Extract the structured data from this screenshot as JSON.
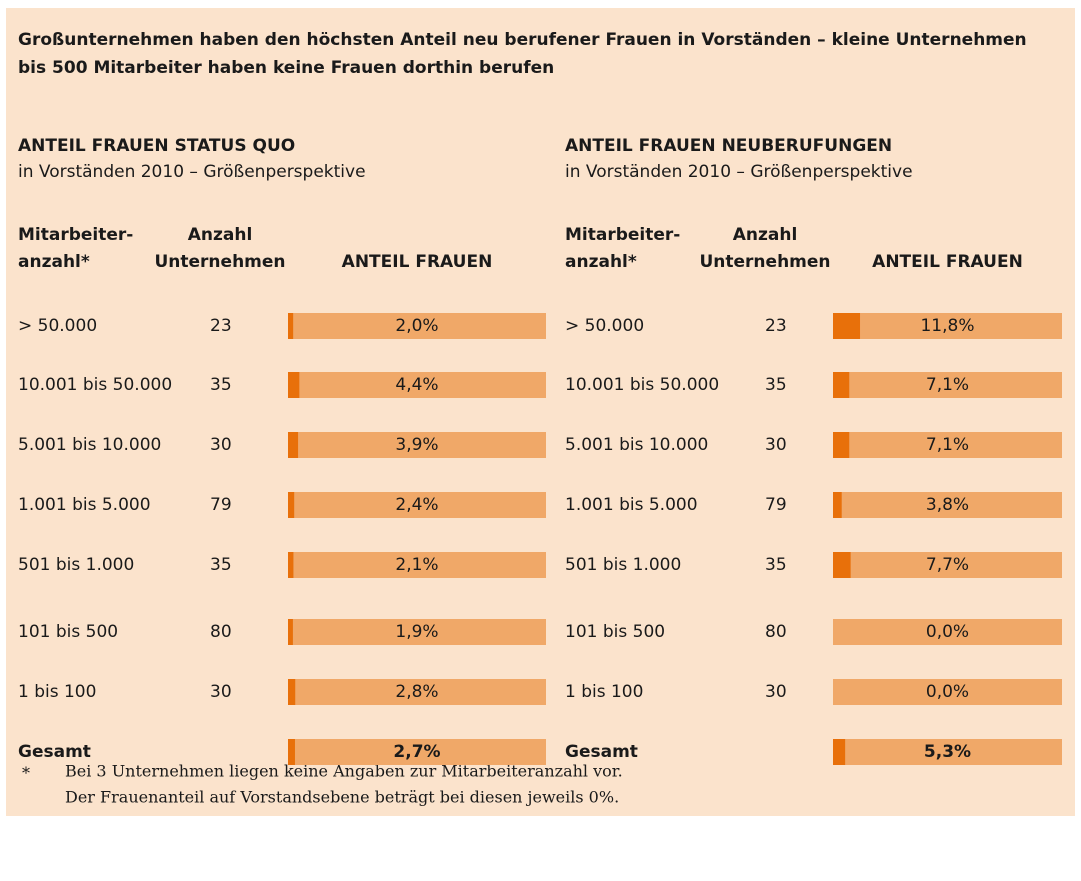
{
  "title": [
    "Großunternehmen haben den höchsten Anteil neu berufener Frauen in Vorständen – kleine Unternehmen",
    "bis 500 Mitarbeiter haben keine Frauen dorthin berufen"
  ],
  "chart_data": [
    {
      "type": "bar",
      "title": "ANTEIL FRAUEN STATUS QUO",
      "subtitle": "in Vorständen 2010 – Größenperspektive",
      "headers": [
        [
          "Mitarbeiter-",
          "anzahl*"
        ],
        [
          "Anzahl",
          "Unternehmen"
        ],
        [
          "ANTEIL FRAUEN"
        ]
      ],
      "categories": [
        "> 50.000",
        "10.001 bis 50.000",
        "5.001 bis 10.000",
        "1.001 bis 5.000",
        "501 bis 1.000",
        "101 bis 500",
        "1 bis 100",
        "Gesamt"
      ],
      "counts": [
        23,
        35,
        30,
        79,
        35,
        80,
        30,
        null
      ],
      "values": [
        2.0,
        4.4,
        3.9,
        2.4,
        2.1,
        1.9,
        2.8,
        2.7
      ],
      "value_labels": [
        "2,0%",
        "4,4%",
        "3,9%",
        "2,4%",
        "2,1%",
        "1,9%",
        "2,8%",
        "2,7%"
      ],
      "xlim": [
        0,
        100
      ],
      "color": "#e8700a",
      "track_color": "#f0a868"
    },
    {
      "type": "bar",
      "title": "ANTEIL FRAUEN NEUBERUFUNGEN",
      "subtitle": "in Vorständen 2010 – Größenperspektive",
      "headers": [
        [
          "Mitarbeiter-",
          "anzahl*"
        ],
        [
          "Anzahl",
          "Unternehmen"
        ],
        [
          "ANTEIL FRAUEN"
        ]
      ],
      "categories": [
        "> 50.000",
        "10.001 bis 50.000",
        "5.001 bis 10.000",
        "1.001 bis 5.000",
        "501 bis 1.000",
        "101 bis 500",
        "1 bis 100",
        "Gesamt"
      ],
      "counts": [
        23,
        35,
        30,
        79,
        35,
        80,
        30,
        null
      ],
      "values": [
        11.8,
        7.1,
        7.1,
        3.8,
        7.7,
        0.0,
        0.0,
        5.3
      ],
      "value_labels": [
        "11,8%",
        "7,1%",
        "7,1%",
        "3,8%",
        "7,7%",
        "0,0%",
        "0,0%",
        "5,3%"
      ],
      "xlim": [
        0,
        100
      ],
      "color": "#e8700a",
      "track_color": "#f0a868"
    }
  ],
  "footnote": {
    "mark": "*",
    "lines": [
      "Bei 3 Unternehmen liegen keine Angaben zur Mitarbeiteranzahl vor.",
      "Der Frauenanteil auf Vorstandsebene beträgt bei diesen jeweils 0%."
    ]
  }
}
